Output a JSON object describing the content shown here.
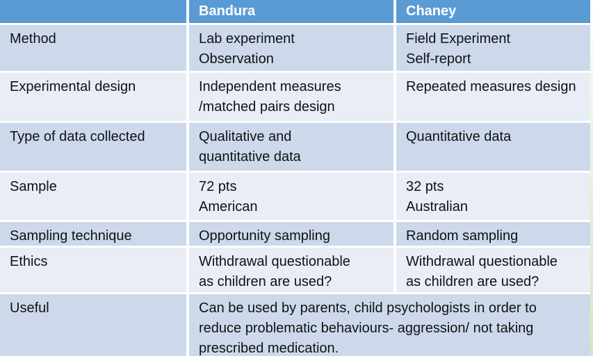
{
  "table": {
    "header": {
      "col1": "",
      "col2": "Bandura",
      "col3": "Chaney"
    },
    "rows": [
      {
        "label": "Method",
        "bandura": [
          "Lab experiment",
          "Observation"
        ],
        "chaney": [
          "Field Experiment",
          "Self-report"
        ]
      },
      {
        "label": "Experimental design",
        "bandura": [
          "Independent measures",
          "/matched pairs design"
        ],
        "chaney": [
          "Repeated measures design"
        ]
      },
      {
        "label": "Type of data collected",
        "bandura": [
          "Qualitative and",
          "quantitative data"
        ],
        "chaney": [
          "Quantitative data"
        ]
      },
      {
        "label": "Sample",
        "bandura": [
          "72 pts",
          "American"
        ],
        "chaney": [
          "32 pts",
          "Australian"
        ]
      },
      {
        "label": "Sampling technique",
        "bandura": [
          "Opportunity sampling"
        ],
        "chaney": [
          "Random sampling"
        ]
      },
      {
        "label": "Ethics",
        "bandura": [
          "Withdrawal questionable",
          "as children are used?"
        ],
        "chaney": [
          "Withdrawal questionable",
          "as children are used?"
        ]
      },
      {
        "label": "Useful",
        "merged": [
          "Can be used by parents, child psychologists in order to",
          "reduce problematic behaviours- aggression/  not taking",
          "prescribed medication."
        ]
      }
    ],
    "colors": {
      "header_bg": "#5b9bd5",
      "header_text": "#ffffff",
      "band_dark": "#cdd9eb",
      "band_light": "#e9edf5",
      "body_text": "#111111",
      "gap": "#ffffff"
    }
  }
}
